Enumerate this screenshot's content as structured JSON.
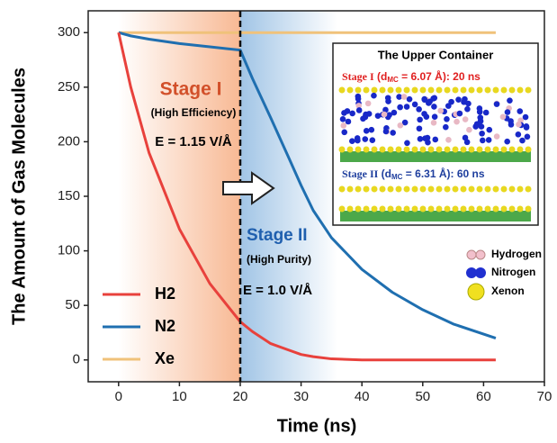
{
  "chart_data": {
    "type": "line",
    "x_label": "Time (ns)",
    "y_label": "The Amount of Gas Molecules",
    "xlim": [
      -5,
      70
    ],
    "ylim": [
      -20,
      320
    ],
    "xticks": [
      0,
      10,
      20,
      30,
      40,
      50,
      60,
      70
    ],
    "yticks": [
      0,
      50,
      100,
      150,
      200,
      250,
      300
    ],
    "x": [
      0,
      2,
      5,
      10,
      15,
      20,
      22,
      25,
      28,
      30,
      32,
      35,
      40,
      45,
      50,
      55,
      62
    ],
    "series": [
      {
        "name": "H2",
        "color": "#e8413c",
        "values": [
          300,
          250,
          190,
          120,
          70,
          35,
          26,
          15,
          9,
          5,
          3,
          1,
          0,
          0,
          0,
          0,
          0
        ]
      },
      {
        "name": "N2",
        "color": "#1f6fb0",
        "values": [
          300,
          297,
          294,
          290,
          287,
          284,
          258,
          222,
          185,
          160,
          137,
          112,
          83,
          62,
          46,
          33,
          20
        ]
      },
      {
        "name": "Xe",
        "color": "#f0c27a",
        "values": [
          300,
          300,
          300,
          300,
          300,
          300,
          300,
          300,
          300,
          300,
          300,
          300,
          300,
          300,
          300,
          300,
          300
        ]
      }
    ],
    "vline_x": 20,
    "spans": [
      {
        "x": [
          0,
          20
        ],
        "color": "#f4935a"
      },
      {
        "x": [
          20,
          36
        ],
        "color": "#6ea5d8"
      }
    ],
    "annotations": {
      "stage1": "Stage I",
      "stage1_note": "(High Efficiency)",
      "stage1_field": "E = 1.15 V/Å",
      "stage2": "Stage II",
      "stage2_note": "(High Purity)",
      "stage2_field": "E = 1.0 V/Å"
    },
    "inset": {
      "title": "The Upper Container",
      "stage1": [
        "Stage I",
        " (d",
        "MC",
        " = 6.07 Å): 20 ns"
      ],
      "stage2": [
        "Stage II",
        " (d",
        "MC",
        " = 6.31 Å): 60 ns"
      ],
      "legend": [
        "Hydrogen",
        "Nitrogen",
        "Xenon"
      ]
    }
  }
}
